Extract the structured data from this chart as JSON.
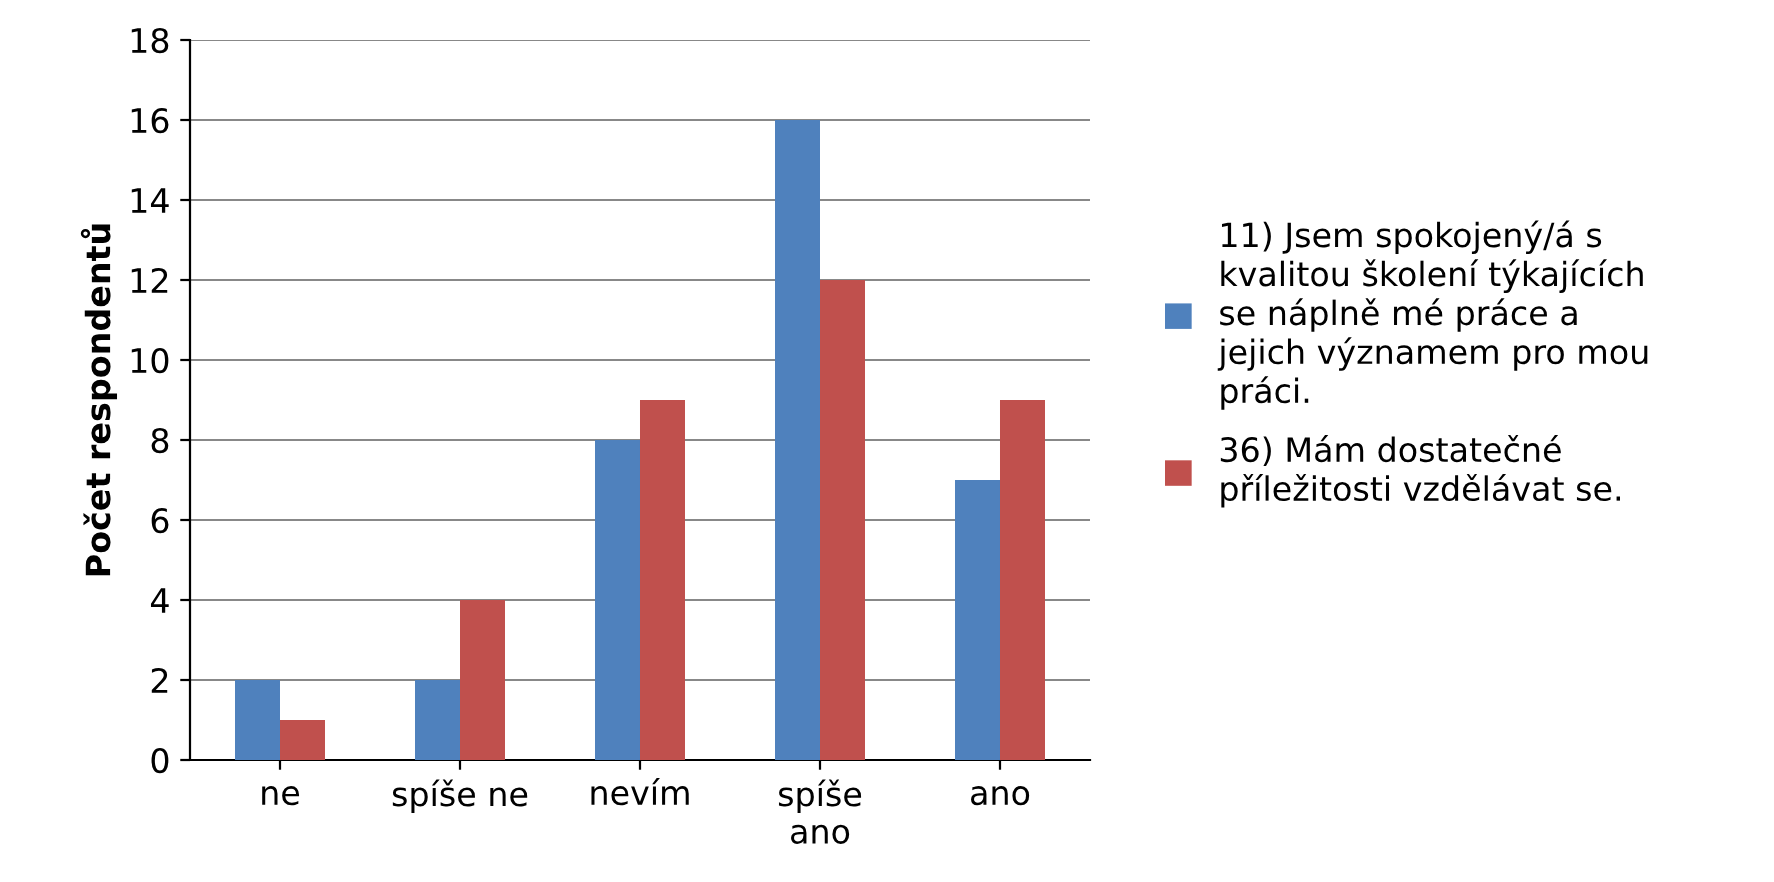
{
  "chart_data": {
    "type": "bar",
    "ylabel": "Počet respondentů",
    "categories": [
      "ne",
      "spíše ne",
      "nevím",
      "spíše\nano",
      "ano"
    ],
    "series": [
      {
        "name": "11) Jsem spokojený/á s\nkvalitou školení týkajících\nse náplně mé práce a\njejich významem pro mou\npráci.",
        "color": "#4f81bd",
        "values": [
          2,
          2,
          8,
          16,
          7
        ]
      },
      {
        "name": "36) Mám dostatečné\npříležitosti vzdělávat se.",
        "color": "#c0504d",
        "values": [
          1,
          4,
          9,
          12,
          9
        ]
      }
    ],
    "ylim": [
      0,
      18
    ],
    "yticks": [
      0,
      2,
      4,
      6,
      8,
      10,
      12,
      14,
      16,
      18
    ],
    "grid": "y",
    "legend": "right"
  }
}
